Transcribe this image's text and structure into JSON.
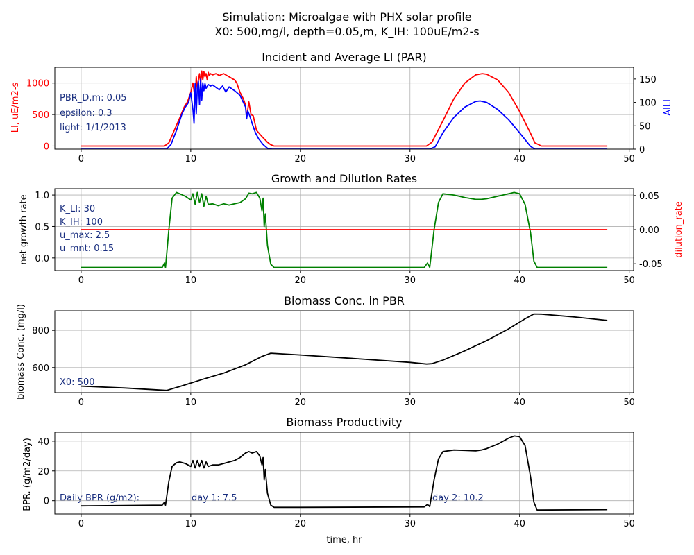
{
  "figure": {
    "title_line1": "Simulation: Microalgae with PHX solar profile",
    "title_line2": "X0: 500,mg/l, depth=0.05,m, K_IH: 100uE/m2-s",
    "xlabel": "time, hr"
  },
  "colors": {
    "red": "#ff0000",
    "blue": "#0000ff",
    "green": "#008000",
    "black": "#000000",
    "annotation": "#1a2f80",
    "grid": "#b0b0b0"
  },
  "panels": [
    {
      "title": "Incident and Average LI (PAR)",
      "ylabel": "LI, uE/m2-s",
      "ylabel_right": "AILI",
      "annotations": [
        "PBR_D,m: 0.05",
        "epsilon: 0.3",
        "light: 1/1/2013"
      ]
    },
    {
      "title": "Growth and Dilution Rates",
      "ylabel": "net growth rate",
      "ylabel_right": "dilution_rate",
      "annotations": [
        "K_LI: 30",
        "K_IH: 100",
        "u_max: 2.5",
        "u_mnt: 0.15"
      ]
    },
    {
      "title": "Biomass Conc. in PBR",
      "ylabel": "biomass Conc. (mg/l)",
      "annotations": [
        "X0: 500"
      ]
    },
    {
      "title": "Biomass Productivity",
      "ylabel": "BPR. (g/m2/day)",
      "annotations": [
        "Daily BPR (g/m2):",
        "day 1: 7.5",
        "day 2: 10.2"
      ]
    }
  ],
  "chart_data": [
    {
      "type": "line",
      "title": "Incident and Average LI (PAR)",
      "xlabel": "",
      "ylabel": "LI, uE/m2-s",
      "ylabel_right": "AILI",
      "xlim": [
        -2.4,
        50.4
      ],
      "ylim": [
        -50,
        1250
      ],
      "ylim_right": [
        0,
        175
      ],
      "xticks": [
        0,
        10,
        20,
        30,
        40,
        50
      ],
      "yticks": [
        0,
        500,
        1000
      ],
      "yticks_right": [
        0,
        50,
        100,
        150
      ],
      "grid": true,
      "series": [
        {
          "name": "LI, uE/m2-s",
          "axis": "left",
          "color": "#ff0000",
          "x": [
            0,
            7.6,
            8.0,
            8.5,
            9.0,
            9.4,
            9.7,
            10.0,
            10.2,
            10.4,
            10.5,
            10.6,
            10.7,
            10.8,
            10.9,
            11.0,
            11.1,
            11.2,
            11.3,
            11.4,
            11.5,
            11.6,
            11.7,
            11.8,
            12.0,
            12.3,
            12.6,
            13.0,
            13.5,
            14.0,
            14.2,
            14.5,
            14.8,
            15.0,
            15.1,
            15.3,
            15.5,
            15.7,
            16.0,
            16.5,
            17.0,
            17.3,
            17.6,
            20,
            31.5,
            32.0,
            33,
            34,
            35,
            36,
            36.6,
            37,
            38,
            39,
            40,
            41,
            41.4,
            42,
            48
          ],
          "y": [
            0,
            0,
            50,
            250,
            450,
            620,
            700,
            850,
            1000,
            750,
            1100,
            900,
            1050,
            1150,
            1000,
            1190,
            1050,
            1180,
            1100,
            1150,
            1050,
            1170,
            1120,
            1150,
            1130,
            1150,
            1120,
            1150,
            1100,
            1050,
            1000,
            850,
            750,
            650,
            450,
            700,
            500,
            480,
            250,
            150,
            60,
            20,
            0,
            0,
            0,
            60,
            400,
            750,
            1000,
            1130,
            1150,
            1140,
            1050,
            850,
            550,
            200,
            50,
            0,
            0
          ]
        },
        {
          "name": "AILI",
          "axis": "right",
          "color": "#0000ff",
          "x": [
            0,
            7.8,
            8.2,
            8.7,
            9.2,
            9.5,
            9.8,
            10.0,
            10.2,
            10.3,
            10.4,
            10.5,
            10.6,
            10.7,
            10.8,
            10.9,
            11.0,
            11.1,
            11.2,
            11.3,
            11.4,
            11.6,
            11.8,
            12.0,
            12.3,
            12.6,
            12.9,
            13.2,
            13.5,
            14.0,
            14.5,
            15.0,
            15.1,
            15.2,
            15.4,
            15.6,
            15.9,
            16.2,
            16.6,
            17.0,
            17.4,
            20,
            31.8,
            32.3,
            33,
            34,
            35,
            36,
            36.4,
            37,
            38,
            39,
            40,
            41,
            41.4,
            48
          ],
          "y": [
            0,
            0,
            10,
            40,
            75,
            90,
            100,
            120,
            85,
            55,
            140,
            75,
            130,
            145,
            95,
            150,
            105,
            142,
            125,
            140,
            130,
            138,
            135,
            137,
            132,
            127,
            135,
            122,
            133,
            125,
            115,
            90,
            65,
            82,
            70,
            55,
            35,
            22,
            10,
            2,
            0,
            0,
            0,
            5,
            35,
            68,
            90,
            102,
            103,
            100,
            85,
            63,
            35,
            6,
            0,
            0
          ]
        }
      ]
    },
    {
      "type": "line",
      "title": "Growth and Dilution Rates",
      "xlabel": "",
      "ylabel": "net growth rate",
      "ylabel_right": "dilution_rate",
      "xlim": [
        -2.4,
        50.4
      ],
      "ylim": [
        -0.2,
        1.1
      ],
      "ylim_right": [
        -0.06,
        0.06
      ],
      "xticks": [
        0,
        10,
        20,
        30,
        40,
        50
      ],
      "yticks": [
        0.0,
        0.5,
        1.0
      ],
      "yticks_right": [
        -0.05,
        0.0,
        0.05
      ],
      "grid": true,
      "series": [
        {
          "name": "net growth rate",
          "axis": "left",
          "color": "#008000",
          "x": [
            0,
            7.4,
            7.6,
            7.7,
            8.0,
            8.3,
            8.7,
            9.0,
            9.5,
            10.0,
            10.2,
            10.4,
            10.6,
            10.8,
            11.0,
            11.2,
            11.4,
            11.6,
            12.0,
            12.5,
            13.0,
            13.5,
            14.0,
            14.5,
            15.0,
            15.3,
            15.6,
            16.0,
            16.3,
            16.5,
            16.6,
            16.7,
            16.8,
            17.0,
            17.3,
            17.6,
            20,
            31.3,
            31.6,
            31.8,
            32.2,
            32.6,
            33,
            34,
            35,
            36,
            36.5,
            37,
            38,
            39,
            39.5,
            40,
            40.5,
            41,
            41.3,
            41.6,
            48
          ],
          "y": [
            -0.15,
            -0.15,
            -0.08,
            -0.15,
            0.45,
            0.95,
            1.04,
            1.02,
            0.98,
            0.92,
            1.02,
            0.85,
            1.04,
            0.88,
            1.02,
            0.82,
            0.98,
            0.85,
            0.86,
            0.83,
            0.86,
            0.84,
            0.86,
            0.88,
            0.94,
            1.03,
            1.02,
            1.04,
            0.95,
            0.75,
            0.95,
            0.5,
            0.7,
            0.2,
            -0.1,
            -0.15,
            -0.15,
            -0.15,
            -0.08,
            -0.15,
            0.45,
            0.88,
            1.02,
            1.0,
            0.96,
            0.93,
            0.93,
            0.94,
            0.98,
            1.02,
            1.04,
            1.02,
            0.85,
            0.4,
            -0.05,
            -0.15,
            -0.15
          ]
        },
        {
          "name": "dilution_rate",
          "axis": "right",
          "color": "#ff0000",
          "x": [
            0,
            48
          ],
          "y": [
            0.0,
            0.0
          ]
        }
      ]
    },
    {
      "type": "line",
      "title": "Biomass Conc. in PBR",
      "xlabel": "",
      "ylabel": "biomass Conc. (mg/l)",
      "xlim": [
        -2.4,
        50.4
      ],
      "ylim": [
        465,
        905
      ],
      "xticks": [
        0,
        10,
        20,
        30,
        40,
        50
      ],
      "yticks": [
        600,
        800
      ],
      "grid": true,
      "series": [
        {
          "name": "biomass Conc. (mg/l)",
          "color": "#000000",
          "x": [
            0,
            4,
            7.8,
            9,
            11,
            13,
            15,
            16.5,
            17.3,
            20,
            25,
            30,
            31.5,
            32,
            33,
            35,
            37,
            39,
            40.5,
            41.3,
            42,
            45,
            48
          ],
          "y": [
            500,
            490,
            477,
            498,
            535,
            570,
            615,
            660,
            677,
            668,
            648,
            628,
            619,
            621,
            640,
            690,
            745,
            808,
            862,
            888,
            887,
            872,
            853
          ]
        }
      ]
    },
    {
      "type": "line",
      "title": "Biomass Productivity",
      "xlabel": "time, hr",
      "ylabel": "BPR. (g/m2/day)",
      "xlim": [
        -2.4,
        50.4
      ],
      "ylim": [
        -9,
        46
      ],
      "xticks": [
        0,
        10,
        20,
        30,
        40,
        50
      ],
      "yticks": [
        0,
        20,
        40
      ],
      "grid": true,
      "series": [
        {
          "name": "BPR. (g/m2/day)",
          "color": "#000000",
          "x": [
            0,
            7.4,
            7.6,
            7.7,
            8.0,
            8.3,
            8.7,
            9.0,
            9.5,
            10.0,
            10.2,
            10.4,
            10.6,
            10.8,
            11.0,
            11.2,
            11.4,
            11.6,
            12.0,
            12.5,
            13.0,
            13.5,
            14.0,
            14.5,
            15.0,
            15.3,
            15.6,
            16.0,
            16.3,
            16.5,
            16.6,
            16.7,
            16.8,
            17.0,
            17.3,
            17.6,
            20,
            31.3,
            31.6,
            31.8,
            32.2,
            32.6,
            33,
            34,
            35,
            36,
            36.5,
            37,
            38,
            39,
            39.5,
            40,
            40.5,
            41,
            41.3,
            41.6,
            48
          ],
          "y": [
            -3.5,
            -3,
            -1,
            -3,
            13,
            23,
            25.5,
            26,
            25,
            23,
            27,
            22,
            27,
            23,
            27,
            22,
            26,
            23,
            24,
            24,
            25,
            26,
            27,
            29,
            32,
            33,
            32,
            33,
            30,
            24,
            29,
            14,
            21,
            5,
            -3,
            -4.5,
            -4.5,
            -4.2,
            -2.5,
            -4,
            14,
            28,
            33,
            34,
            33.8,
            33.5,
            34,
            35,
            38,
            42,
            43.5,
            43,
            37,
            16,
            -1,
            -6.3,
            -6
          ]
        }
      ]
    }
  ]
}
